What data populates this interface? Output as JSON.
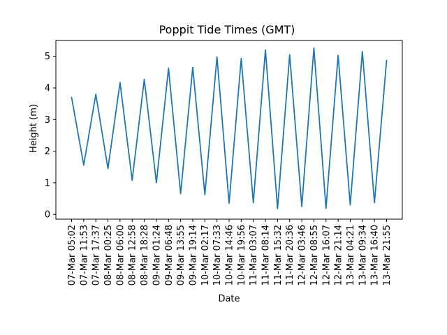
{
  "chart_data": {
    "type": "line",
    "title": "Poppit Tide Times (GMT)",
    "xlabel": "Date",
    "ylabel": "Height (m)",
    "ylim": [
      -0.15,
      5.5
    ],
    "yticks": [
      0,
      1,
      2,
      3,
      4,
      5
    ],
    "grid": false,
    "categories": [
      "07-Mar 05:02",
      "07-Mar 11:53",
      "07-Mar 17:37",
      "08-Mar 00:25",
      "08-Mar 06:00",
      "08-Mar 12:58",
      "08-Mar 18:28",
      "09-Mar 01:24",
      "09-Mar 06:48",
      "09-Mar 13:55",
      "09-Mar 19:14",
      "10-Mar 02:17",
      "10-Mar 07:33",
      "10-Mar 14:46",
      "10-Mar 19:56",
      "11-Mar 03:07",
      "11-Mar 08:14",
      "11-Mar 15:32",
      "11-Mar 20:36",
      "12-Mar 03:46",
      "12-Mar 08:55",
      "12-Mar 16:07",
      "12-Mar 21:14",
      "13-Mar 04:21",
      "13-Mar 09:34",
      "13-Mar 16:40",
      "13-Mar 21:55"
    ],
    "series": [
      {
        "color": "#1f77b4",
        "values": [
          3.7,
          1.56,
          3.8,
          1.45,
          4.17,
          1.08,
          4.27,
          1.0,
          4.62,
          0.66,
          4.65,
          0.62,
          4.98,
          0.35,
          4.93,
          0.37,
          5.2,
          0.18,
          5.05,
          0.25,
          5.26,
          0.19,
          5.03,
          0.3,
          5.15,
          0.37,
          4.87
        ]
      }
    ]
  }
}
